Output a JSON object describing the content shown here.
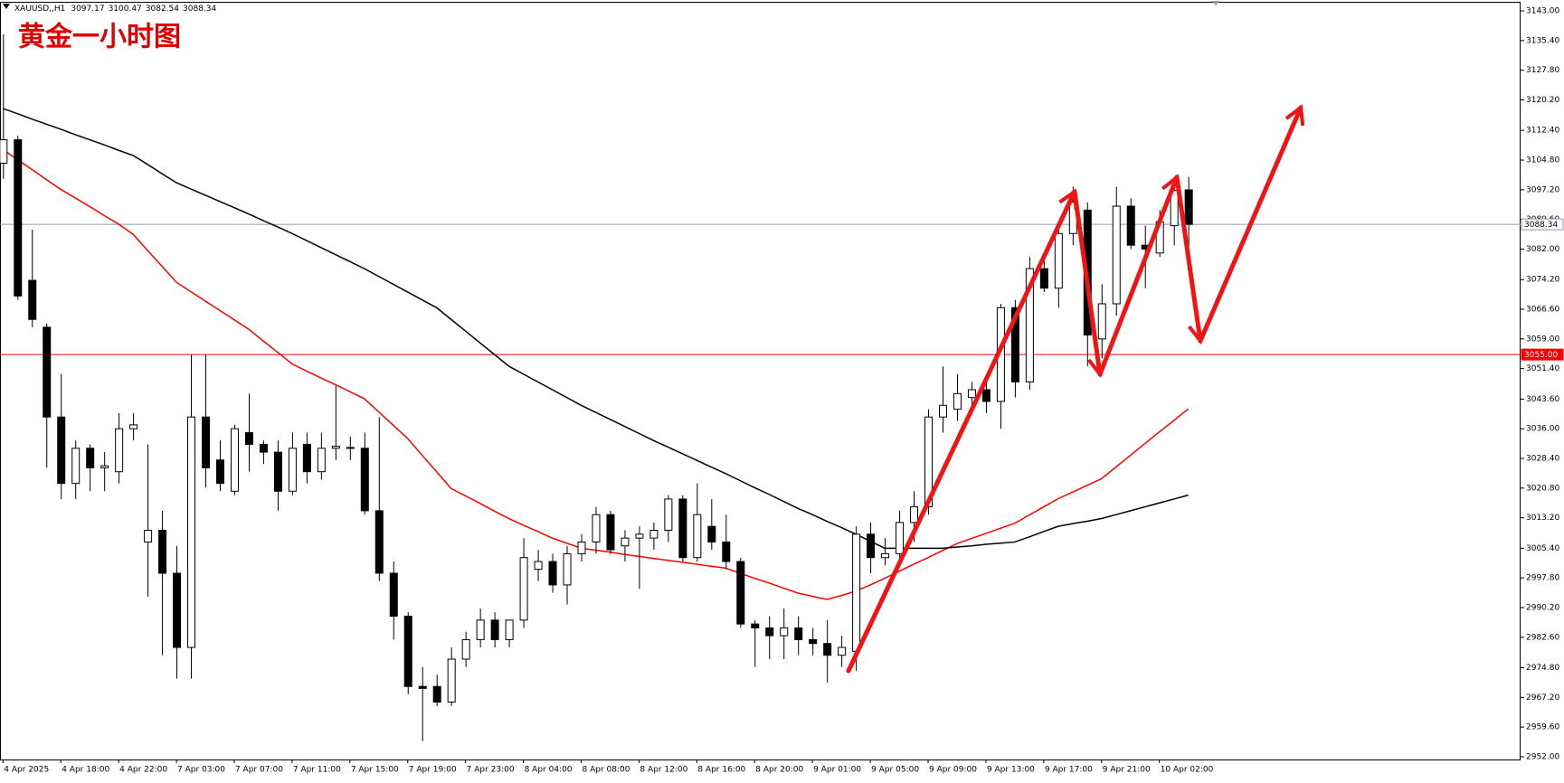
{
  "chart_data": {
    "type": "candlestick",
    "symbol": "XAUUSD,,H1",
    "annotation": "黄金一小时图",
    "categories": [
      "4 Apr 2025",
      null,
      null,
      null,
      "4 Apr 18:00",
      null,
      null,
      null,
      "4 Apr 22:00",
      null,
      null,
      null,
      "7 Apr 03:00",
      null,
      null,
      null,
      "7 Apr 07:00",
      null,
      null,
      null,
      "7 Apr 11:00",
      null,
      null,
      null,
      "7 Apr 15:00",
      null,
      null,
      null,
      "7 Apr 19:00",
      null,
      null,
      null,
      "7 Apr 23:00",
      null,
      null,
      null,
      "8 Apr 04:00",
      null,
      null,
      null,
      "8 Apr 08:00",
      null,
      null,
      null,
      "8 Apr 12:00",
      null,
      null,
      null,
      "8 Apr 16:00",
      null,
      null,
      null,
      "8 Apr 20:00",
      null,
      null,
      null,
      "9 Apr 01:00",
      null,
      null,
      null,
      "9 Apr 05:00",
      null,
      null,
      null,
      "9 Apr 09:00",
      null,
      null,
      null,
      "9 Apr 13:00",
      null,
      null,
      null,
      "9 Apr 17:00",
      null,
      null,
      null,
      "9 Apr 21:00",
      null,
      null,
      null,
      "10 Apr 02:00",
      null,
      null
    ],
    "open": [
      3104,
      3110,
      3074,
      3062,
      3039,
      3022,
      3031,
      3026,
      3025,
      3036,
      3007,
      3010,
      2999,
      2980,
      3039,
      3028,
      3020,
      3035,
      3032,
      3030,
      3020,
      3032,
      3025,
      3031,
      3031,
      3031,
      3015,
      2999,
      2988,
      2970,
      2970,
      2966,
      2977,
      2982,
      2987,
      2982,
      2987,
      3000,
      3002,
      2996,
      3004,
      3007,
      3014,
      3006,
      3008,
      3008,
      3010,
      3018,
      3003,
      3011,
      3007,
      3002,
      2986,
      2985,
      2983,
      2985,
      2982,
      2981,
      2978,
      2979,
      3009,
      3003,
      3004,
      3012,
      3016,
      3039,
      3041,
      3044,
      3046,
      3043,
      3067,
      3048,
      3077,
      3072,
      3086,
      3092,
      3059,
      3068,
      3093,
      3083,
      3081,
      3088,
      3097.17
    ],
    "high": [
      3137,
      3111,
      3087,
      3063,
      3050,
      3033,
      3032,
      3030,
      3040,
      3040,
      3032,
      3015,
      3006,
      3055,
      3055,
      3033,
      3037,
      3045,
      3033,
      3033,
      3035,
      3035,
      3035,
      3047,
      3034,
      3035,
      3039,
      3002,
      2989,
      2975,
      2973,
      2980,
      2984,
      2990,
      2989,
      2987,
      3008,
      3005,
      3004,
      3006,
      3009,
      3016,
      3015,
      3010,
      3011,
      3012,
      3019,
      3019,
      3022,
      3018,
      3014,
      3003,
      2987,
      2988,
      2990,
      2988,
      2985,
      2987,
      2983,
      3011,
      3012,
      3008,
      3015,
      3020,
      3041,
      3052,
      3050,
      3048,
      3049,
      3068,
      3069,
      3080,
      3080,
      3088,
      3098,
      3094,
      3073,
      3098,
      3095,
      3088,
      3092,
      3099,
      3100.47
    ],
    "low": [
      3100,
      3069,
      3062,
      3026,
      3018,
      3018,
      3020,
      3020,
      3022,
      3033,
      2993,
      2978,
      2972,
      2972,
      3021,
      3020,
      3019,
      3025,
      3027,
      3015,
      3019,
      3022,
      3023,
      3028,
      3028,
      3014,
      2997,
      2982,
      2968,
      2956,
      2965,
      2965,
      2975,
      2980,
      2980,
      2980,
      2985,
      2997,
      2994,
      2991,
      3002,
      3004,
      3004,
      3002,
      2995,
      3005,
      3007,
      3002,
      3002,
      3005,
      3000,
      2985,
      2975,
      2977,
      2977,
      2978,
      2978,
      2971,
      2975,
      2974,
      2999,
      3001,
      3003,
      3007,
      3014,
      3035,
      3038,
      3040,
      3040,
      3036,
      3044,
      3046,
      3071,
      3067,
      3083,
      3052,
      3054,
      3065,
      3082,
      3072,
      3080,
      3083,
      3082.54
    ],
    "close": [
      3110,
      3070,
      3064,
      3039,
      3022,
      3031,
      3026,
      3026.5,
      3036,
      3037,
      3010,
      2999,
      2980,
      3039,
      3026,
      3022,
      3036,
      3032,
      3030,
      3020,
      3031,
      3025,
      3031,
      3031.5,
      3031.2,
      3015,
      2999,
      2988,
      2970,
      2969.5,
      2966,
      2977,
      2982,
      2987,
      2982,
      2987,
      3003,
      3002,
      2996,
      3004,
      3007,
      3014,
      3005,
      3008,
      3009,
      3010,
      3018,
      3003,
      3014,
      3007,
      3002,
      2986,
      2985,
      2983,
      2985,
      2982,
      2981,
      2978,
      2980,
      3009,
      3003,
      3004,
      3012,
      3016,
      3039,
      3042,
      3045,
      3046,
      3043,
      3067,
      3048,
      3077,
      3072,
      3086,
      3094,
      3060,
      3068,
      3093,
      3083,
      3082,
      3089,
      3097,
      3088.34
    ],
    "up_color": "#ffffff",
    "down_color": "#000000",
    "lines": [
      {
        "color": "#ff0000",
        "values": [
          3107.5,
          3104.9,
          3102.4,
          3099.8,
          3097.3,
          3095.1,
          3092.9,
          3090.6,
          3088.4,
          3085.8,
          3081.7,
          3077.6,
          3073.5,
          3071.1,
          3068.7,
          3066.3,
          3063.9,
          3061.5,
          3058.5,
          3055.6,
          3052.6,
          3050.8,
          3049.0,
          3047.3,
          3045.5,
          3043.7,
          3040.3,
          3036.9,
          3033.5,
          3029.2,
          3025.0,
          3020.7,
          3018.8,
          3016.9,
          3014.9,
          3013,
          3011.3,
          3009.7,
          3008,
          3006.7,
          3005.4,
          3004.9,
          3004.4,
          3003.8,
          3003.3,
          3002.8,
          3002.3,
          3001.8,
          3001.3,
          3000.8,
          3000.3,
          2999.0,
          2997.7,
          2996.5,
          2995.2,
          2993.9,
          2993.1,
          2992.3,
          2993.3,
          2994.4,
          2996.0,
          2997.7,
          2999.5,
          3001.3,
          3003.0,
          3004.8,
          3006.6,
          3007.9,
          3009.2,
          3010.5,
          3011.8,
          3013.9,
          3016.0,
          3018.1,
          3019.8,
          3021.5,
          3023.2,
          3026.2,
          3029.2,
          3032.2,
          3035.2,
          3038.1,
          3041.1
        ]
      },
      {
        "color": "#000000",
        "values": [
          3118,
          3116.7,
          3115.3,
          3114,
          3112.7,
          3111.3,
          3110,
          3108.7,
          3107.3,
          3106,
          3103.7,
          3101.3,
          3099,
          3097.4,
          3095.8,
          3094.2,
          3092.6,
          3091,
          3089.3,
          3087.7,
          3086,
          3084.2,
          3082.4,
          3080.6,
          3078.8,
          3077,
          3075,
          3073,
          3071,
          3069,
          3067,
          3064,
          3061,
          3058,
          3055,
          3052,
          3050,
          3048,
          3046,
          3044,
          3042,
          3040.2,
          3038.4,
          3036.6,
          3034.8,
          3033,
          3031.3,
          3029.6,
          3027.9,
          3026.2,
          3024.5,
          3022.7,
          3020.9,
          3019.2,
          3017.4,
          3015.6,
          3014,
          3012.3,
          3010.7,
          3009,
          3007.2,
          3005.4,
          3005.4,
          3005.4,
          3005.4,
          3005.4,
          3005.7,
          3006,
          3006.4,
          3006.7,
          3007,
          3008.3,
          3009.7,
          3011,
          3011.7,
          3012.3,
          3013,
          3014,
          3015,
          3016,
          3017,
          3018,
          3019
        ]
      }
    ],
    "hlines": [
      {
        "value": 3088.34,
        "label": "3088.34",
        "color": "#8c9bb0",
        "label_bg": "#ffffff",
        "label_color": "#000000"
      },
      {
        "value": 3055.0,
        "label": "3055.00",
        "color": "#ff0000",
        "label_bg": "#ff0000",
        "label_color": "#ffffff"
      }
    ],
    "ylim": [
      2951.3,
      3145.1
    ],
    "yticks": [
      {
        "value": 3143,
        "label": "3143.00"
      },
      {
        "value": 3135.4,
        "label": "3135.40"
      },
      {
        "value": 3127.8,
        "label": "3127.80"
      },
      {
        "value": 3120.2,
        "label": "3120.20"
      },
      {
        "value": 3112.4,
        "label": "3112.40"
      },
      {
        "value": 3104.8,
        "label": "3104.80"
      },
      {
        "value": 3097.2,
        "label": "3097.20"
      },
      {
        "value": 3089.6,
        "label": "3089.60"
      },
      {
        "value": 3082,
        "label": "3082.00"
      },
      {
        "value": 3074.2,
        "label": "3074.20"
      },
      {
        "value": 3066.6,
        "label": "3066.60"
      },
      {
        "value": 3059,
        "label": "3059.00"
      },
      {
        "value": 3051.4,
        "label": "3051.40"
      },
      {
        "value": 3043.6,
        "label": "3043.60"
      },
      {
        "value": 3036,
        "label": "3036.00"
      },
      {
        "value": 3028.4,
        "label": "3028.40"
      },
      {
        "value": 3020.8,
        "label": "3020.80"
      },
      {
        "value": 3013.2,
        "label": "3013.20"
      },
      {
        "value": 3005.4,
        "label": "3005.40"
      },
      {
        "value": 2997.8,
        "label": "2997.80"
      },
      {
        "value": 2990.2,
        "label": "2990.20"
      },
      {
        "value": 2982.6,
        "label": "2982.60"
      },
      {
        "value": 2974.8,
        "label": "2974.80"
      },
      {
        "value": 2967.2,
        "label": "2967.20"
      },
      {
        "value": 2959.6,
        "label": "2959.60"
      },
      {
        "value": 2952,
        "label": "2952.00"
      }
    ],
    "grid": false
  }
}
